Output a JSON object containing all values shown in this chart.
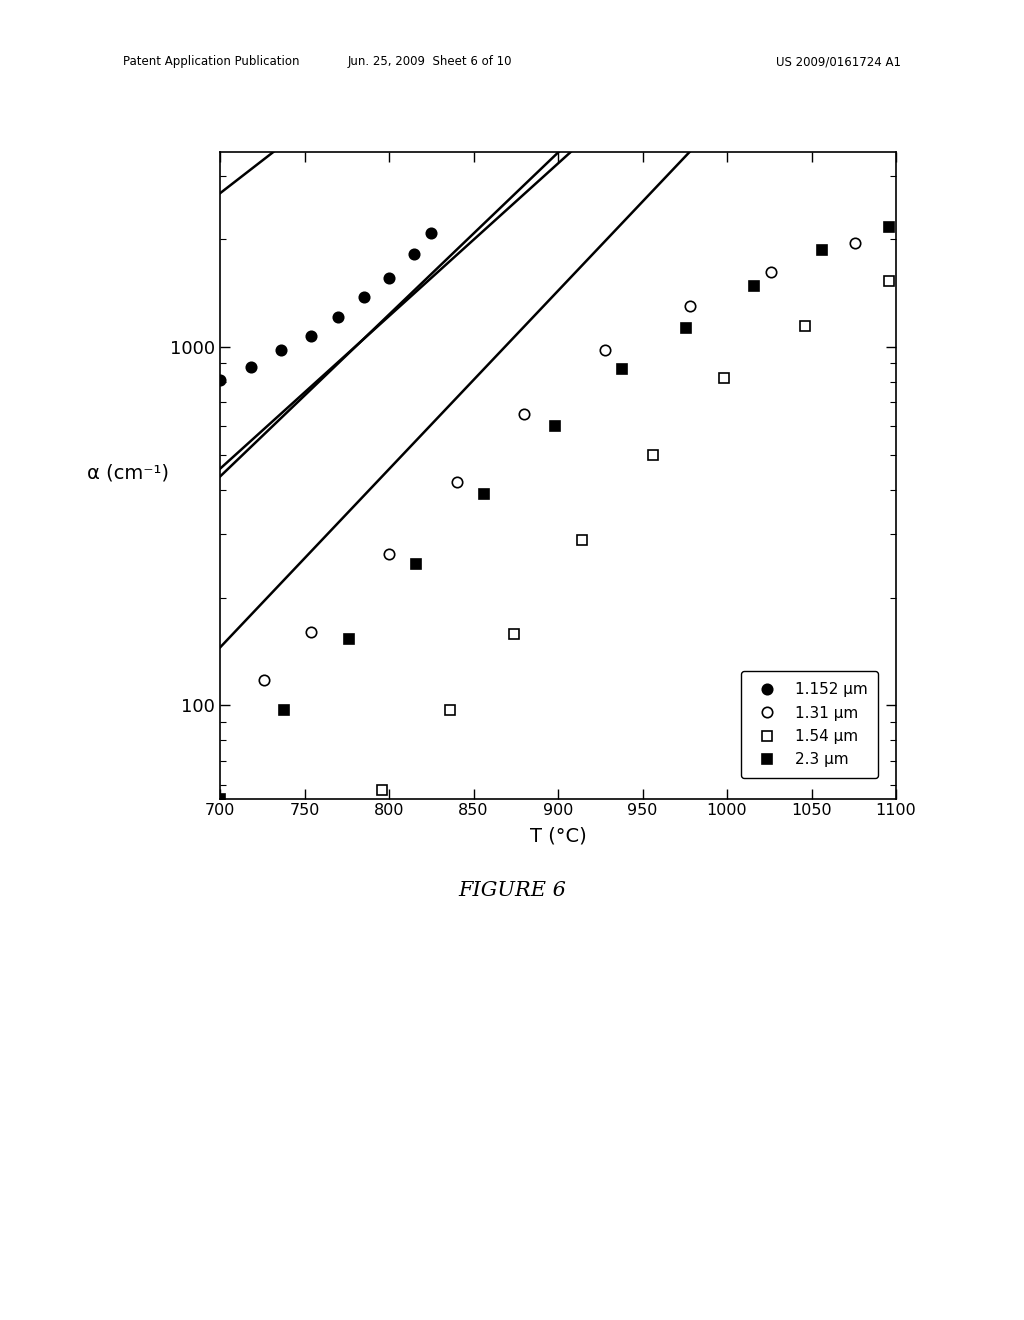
{
  "title": "FIGURE 6",
  "ylabel": "α (cm⁻¹)",
  "xlabel": "T (°C)",
  "xlim": [
    700,
    1100
  ],
  "ylim": [
    55,
    3500
  ],
  "xticks": [
    700,
    750,
    800,
    850,
    900,
    950,
    1000,
    1050,
    1100
  ],
  "background_color": "#ffffff",
  "header_line1": "Patent Application Publication",
  "header_line2": "Jun. 25, 2009  Sheet 6 of 10",
  "header_line3": "US 2009/0161724 A1",
  "figure_label": "FIGURE 6",
  "series": [
    {
      "label": "1.152 μm",
      "marker": "o",
      "filled": true,
      "data_x": [
        700,
        718,
        736,
        754,
        770,
        785,
        800,
        815,
        825
      ],
      "data_y": [
        810,
        880,
        980,
        1070,
        1210,
        1380,
        1560,
        1820,
        2080
      ],
      "curve_a": 7.5,
      "curve_b": 0.0084
    },
    {
      "label": "1.31 μm",
      "marker": "o",
      "filled": false,
      "data_x": [
        726,
        754,
        800,
        840,
        880,
        928,
        978,
        1026,
        1076
      ],
      "data_y": [
        118,
        160,
        265,
        420,
        650,
        980,
        1300,
        1620,
        1950
      ],
      "curve_a": 0.48,
      "curve_b": 0.0098
    },
    {
      "label": "1.54 μm",
      "marker": "s",
      "filled": false,
      "data_x": [
        796,
        836,
        874,
        914,
        956,
        998,
        1046,
        1096
      ],
      "data_y": [
        58,
        97,
        158,
        290,
        500,
        820,
        1140,
        1530
      ],
      "curve_a": 0.048,
      "curve_b": 0.01145
    },
    {
      "label": "2.3 μm",
      "marker": "s",
      "filled": true,
      "data_x": [
        700,
        738,
        776,
        816,
        856,
        898,
        938,
        976,
        1016,
        1056,
        1096
      ],
      "data_y": [
        55,
        97,
        153,
        248,
        388,
        600,
        870,
        1130,
        1480,
        1860,
        2160
      ],
      "curve_a": 0.3,
      "curve_b": 0.0104
    }
  ]
}
